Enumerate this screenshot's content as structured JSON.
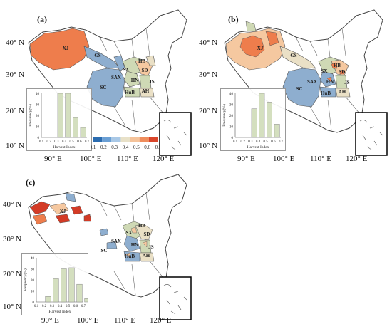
{
  "panels": [
    {
      "id": "a",
      "label": "(a)",
      "lat_labels": [
        "40° N",
        "30° N",
        "20° N",
        "10° N"
      ],
      "lon_labels": [
        "90° E",
        "100° E",
        "110° E",
        "120° E"
      ],
      "provinces": [
        "XJ",
        "GS",
        "SX",
        "SD",
        "HB",
        "SAX",
        "HN",
        "SC",
        "HuB",
        "AH",
        "JS"
      ],
      "hist": {
        "xlabel": "Harvest Index",
        "ylabel": "Frequency(%)",
        "x_ticks": [
          "0.1",
          "0.2",
          "0.3",
          "0.4",
          "0.5",
          "0.6",
          "0.7"
        ],
        "y_ticks": [
          "0",
          "10",
          "20",
          "30",
          "40"
        ],
        "values": [
          0,
          0,
          40,
          40,
          18,
          9,
          0
        ]
      }
    },
    {
      "id": "b",
      "label": "(b)",
      "lat_labels": [
        "40° N",
        "30° N",
        "20° N",
        "10° N"
      ],
      "lon_labels": [
        "90° E",
        "100° E",
        "110° E",
        "120° E"
      ],
      "provinces": [
        "XJ",
        "GS",
        "HB",
        "SX",
        "SD",
        "SAX",
        "HN",
        "SC",
        "HuB",
        "JS",
        "AH"
      ],
      "hist": {
        "xlabel": "Harvest Index",
        "ylabel": "Frequency(%)",
        "x_ticks": [
          "0.1",
          "0.2",
          "0.3",
          "0.4",
          "0.5",
          "0.6",
          "0.7"
        ],
        "y_ticks": [
          "0",
          "10",
          "20",
          "30",
          "40"
        ],
        "values": [
          0,
          0,
          26,
          40,
          32,
          12,
          0
        ]
      }
    },
    {
      "id": "c",
      "label": "(c)",
      "lat_labels": [
        "40° N",
        "30° N",
        "20° N",
        "10° N"
      ],
      "lon_labels": [
        "90° E",
        "100° E",
        "110° E",
        "120° E"
      ],
      "provinces": [
        "XJ",
        "SX",
        "SD",
        "HB",
        "SAX",
        "HN",
        "SC",
        "HuB",
        "JS",
        "AH"
      ],
      "hist": {
        "xlabel": "Harvest Index",
        "ylabel": "Frequency(%)",
        "x_ticks": [
          "0.1",
          "0.2",
          "0.3",
          "0.4",
          "0.5",
          "0.6",
          "0.7"
        ],
        "y_ticks": [
          "0",
          "10",
          "20",
          "30",
          "40"
        ],
        "values": [
          0,
          5,
          21,
          30,
          31,
          16,
          3
        ]
      }
    }
  ],
  "colorbar": {
    "ticks": [
      "0.1",
      "0.2",
      "0.3",
      "0.4",
      "0.5",
      "0.6",
      "0.7"
    ],
    "colors": [
      "#2b6cb0",
      "#6a9fd4",
      "#a9c8e6",
      "#e8e1c8",
      "#f5c39a",
      "#ef8d5c",
      "#d9452a"
    ]
  },
  "colors": {
    "blue": "#8eaecf",
    "lightgreen": "#cfd9b5",
    "orange": "#ee7d4c",
    "lightorange": "#f5c8a0",
    "beige": "#eae0c6",
    "red": "#d33b26",
    "bar": "#d4dfbf"
  }
}
